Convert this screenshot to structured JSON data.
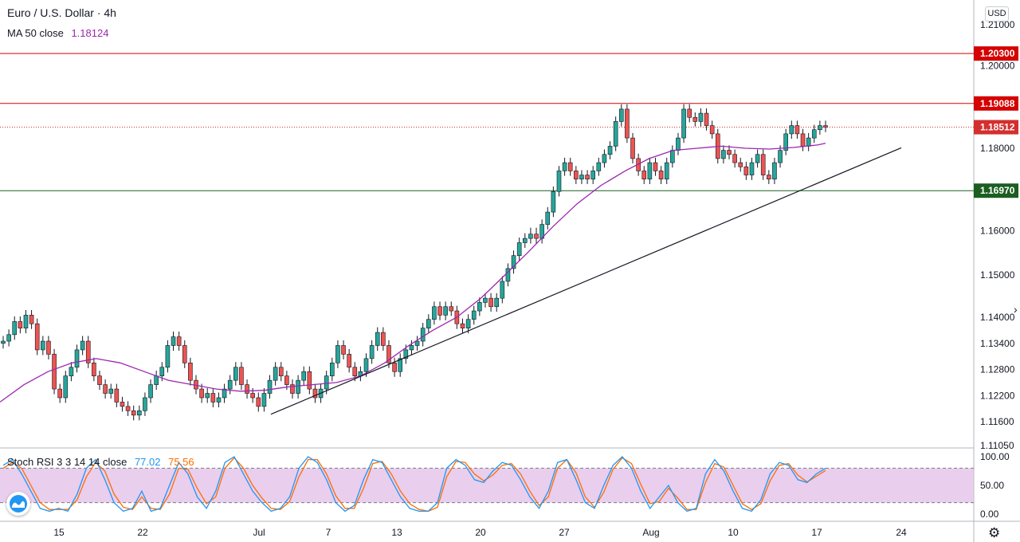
{
  "symbol_title": "Euro / U.S. Dollar · 4h",
  "ma_label": "MA 50 close",
  "ma_value": "1.18124",
  "stoch_label": "Stoch RSI 3 3 14 14 close",
  "stoch_k": "77.02",
  "stoch_d": "75.56",
  "currency": "USD",
  "icons": {
    "settings": "gear-icon",
    "logo": "tradingview-logo-icon",
    "scroll": "chevron-right-icon"
  },
  "colors": {
    "up": "#26a69a",
    "down": "#ef5350",
    "candle_outline": "#131722",
    "ma": "#9c27b0",
    "resistance": "#d50000",
    "support": "#1b5e20",
    "current_price": "#d32f2f",
    "stoch_k_color": "#2196f3",
    "stoch_d_color": "#ff6d00",
    "stoch_band": "#e1bee7"
  },
  "chart_data": {
    "type": "candlestick",
    "price_axis": {
      "ticks": [
        "1.21000",
        "1.20000",
        "1.18000",
        "1.16000",
        "1.15000",
        "1.14000",
        "1.13400",
        "1.12800",
        "1.12200",
        "1.11600",
        "1.11050"
      ],
      "range": [
        1.1105,
        1.212
      ]
    },
    "time_axis": {
      "ticks": [
        "15",
        "22",
        "Jul",
        "7",
        "13",
        "20",
        "27",
        "Aug",
        "10",
        "17",
        "24"
      ]
    },
    "horizontal_levels": [
      {
        "label": "1.20300",
        "price": 1.203,
        "kind": "resistance"
      },
      {
        "label": "1.19088",
        "price": 1.19088,
        "kind": "resistance"
      },
      {
        "label": "1.18512",
        "price": 1.18512,
        "kind": "current"
      },
      {
        "label": "1.16970",
        "price": 1.1697,
        "kind": "support"
      }
    ],
    "trendline": {
      "from": {
        "date": "Jul 1",
        "price": 1.1177
      },
      "to": {
        "date": "Aug 23",
        "price": 1.1801
      }
    },
    "candles_close_path": [
      [
        1.134,
        1.1345
      ],
      [
        1.1345,
        1.136
      ],
      [
        1.136,
        1.139
      ],
      [
        1.139,
        1.1375
      ],
      [
        1.1375,
        1.1405
      ],
      [
        1.1405,
        1.1385
      ],
      [
        1.1385,
        1.1325
      ],
      [
        1.1325,
        1.1345
      ],
      [
        1.1345,
        1.1315
      ],
      [
        1.1315,
        1.1235
      ],
      [
        1.1235,
        1.1215
      ],
      [
        1.1215,
        1.1265
      ],
      [
        1.1265,
        1.1285
      ],
      [
        1.1285,
        1.1325
      ],
      [
        1.1325,
        1.1345
      ],
      [
        1.1345,
        1.1295
      ],
      [
        1.1295,
        1.1265
      ],
      [
        1.1265,
        1.1245
      ],
      [
        1.1245,
        1.1225
      ],
      [
        1.1225,
        1.1235
      ],
      [
        1.1235,
        1.1205
      ],
      [
        1.1205,
        1.1195
      ],
      [
        1.1195,
        1.1185
      ],
      [
        1.1185,
        1.1175
      ],
      [
        1.1175,
        1.1185
      ],
      [
        1.1185,
        1.1215
      ],
      [
        1.1215,
        1.1245
      ],
      [
        1.1245,
        1.1265
      ],
      [
        1.1265,
        1.1285
      ],
      [
        1.1285,
        1.1335
      ],
      [
        1.1335,
        1.1355
      ],
      [
        1.1355,
        1.1335
      ],
      [
        1.1335,
        1.1295
      ],
      [
        1.1295,
        1.1255
      ],
      [
        1.1255,
        1.1235
      ],
      [
        1.1235,
        1.1215
      ],
      [
        1.1215,
        1.1225
      ],
      [
        1.1225,
        1.1205
      ],
      [
        1.1205,
        1.1215
      ],
      [
        1.1215,
        1.1235
      ],
      [
        1.1235,
        1.1255
      ],
      [
        1.1255,
        1.1285
      ],
      [
        1.1285,
        1.1245
      ],
      [
        1.1245,
        1.1225
      ],
      [
        1.1225,
        1.1215
      ],
      [
        1.1215,
        1.1195
      ],
      [
        1.1195,
        1.1225
      ],
      [
        1.1225,
        1.1255
      ],
      [
        1.1255,
        1.1285
      ],
      [
        1.1285,
        1.1265
      ],
      [
        1.1265,
        1.1245
      ],
      [
        1.1245,
        1.1225
      ],
      [
        1.1225,
        1.1255
      ],
      [
        1.1255,
        1.1275
      ],
      [
        1.1275,
        1.1235
      ],
      [
        1.1235,
        1.1215
      ],
      [
        1.1215,
        1.1235
      ],
      [
        1.1235,
        1.1265
      ],
      [
        1.1265,
        1.1295
      ],
      [
        1.1295,
        1.1335
      ],
      [
        1.1335,
        1.1315
      ],
      [
        1.1315,
        1.1285
      ],
      [
        1.1285,
        1.1265
      ],
      [
        1.1265,
        1.1275
      ],
      [
        1.1275,
        1.1305
      ],
      [
        1.1305,
        1.1335
      ],
      [
        1.1335,
        1.1365
      ],
      [
        1.1365,
        1.1335
      ],
      [
        1.1335,
        1.1295
      ],
      [
        1.1295,
        1.1275
      ],
      [
        1.1275,
        1.1305
      ],
      [
        1.1305,
        1.1325
      ],
      [
        1.1325,
        1.1335
      ],
      [
        1.1335,
        1.1345
      ],
      [
        1.1345,
        1.1375
      ],
      [
        1.1375,
        1.1395
      ],
      [
        1.1395,
        1.1425
      ],
      [
        1.1425,
        1.1405
      ],
      [
        1.1405,
        1.1425
      ],
      [
        1.1425,
        1.1415
      ],
      [
        1.1415,
        1.1385
      ],
      [
        1.1385,
        1.1375
      ],
      [
        1.1375,
        1.1395
      ],
      [
        1.1395,
        1.1415
      ],
      [
        1.1415,
        1.1435
      ],
      [
        1.1435,
        1.1445
      ],
      [
        1.1445,
        1.1425
      ],
      [
        1.1425,
        1.1445
      ],
      [
        1.1445,
        1.1485
      ],
      [
        1.1485,
        1.1515
      ],
      [
        1.1515,
        1.1545
      ],
      [
        1.1545,
        1.1575
      ],
      [
        1.1575,
        1.1585
      ],
      [
        1.1585,
        1.1595
      ],
      [
        1.1595,
        1.1585
      ],
      [
        1.1585,
        1.1615
      ],
      [
        1.1615,
        1.1645
      ],
      [
        1.1645,
        1.1695
      ],
      [
        1.1695,
        1.1745
      ],
      [
        1.1745,
        1.1765
      ],
      [
        1.1765,
        1.1745
      ],
      [
        1.1745,
        1.1725
      ],
      [
        1.1725,
        1.1735
      ],
      [
        1.1735,
        1.1725
      ],
      [
        1.1725,
        1.1745
      ],
      [
        1.1745,
        1.1765
      ],
      [
        1.1765,
        1.1785
      ],
      [
        1.1785,
        1.1805
      ],
      [
        1.1805,
        1.1865
      ],
      [
        1.1865,
        1.1895
      ],
      [
        1.1895,
        1.1825
      ],
      [
        1.1825,
        1.1775
      ],
      [
        1.1775,
        1.1745
      ],
      [
        1.1745,
        1.1725
      ],
      [
        1.1725,
        1.1765
      ],
      [
        1.1765,
        1.1745
      ],
      [
        1.1745,
        1.1725
      ],
      [
        1.1725,
        1.1765
      ],
      [
        1.1765,
        1.1795
      ],
      [
        1.1795,
        1.1825
      ],
      [
        1.1825,
        1.1895
      ],
      [
        1.1895,
        1.1875
      ],
      [
        1.1875,
        1.1865
      ],
      [
        1.1865,
        1.1885
      ],
      [
        1.1885,
        1.1855
      ],
      [
        1.1855,
        1.1835
      ],
      [
        1.1835,
        1.1775
      ],
      [
        1.1775,
        1.1795
      ],
      [
        1.1795,
        1.1785
      ],
      [
        1.1785,
        1.1765
      ],
      [
        1.1765,
        1.1755
      ],
      [
        1.1755,
        1.1735
      ],
      [
        1.1735,
        1.1765
      ],
      [
        1.1765,
        1.1785
      ],
      [
        1.1785,
        1.1735
      ],
      [
        1.1735,
        1.1725
      ],
      [
        1.1725,
        1.1765
      ],
      [
        1.1765,
        1.1795
      ],
      [
        1.1795,
        1.1835
      ],
      [
        1.1835,
        1.1855
      ],
      [
        1.1855,
        1.1835
      ],
      [
        1.1835,
        1.1805
      ],
      [
        1.1805,
        1.1825
      ],
      [
        1.1825,
        1.1845
      ],
      [
        1.1845,
        1.1855
      ],
      [
        1.1855,
        1.1851
      ]
    ],
    "ma50_path": [
      [
        1.1205,
        0
      ],
      [
        1.1245,
        6
      ],
      [
        1.1275,
        12
      ],
      [
        1.1295,
        18
      ],
      [
        1.1305,
        24
      ],
      [
        1.1295,
        30
      ],
      [
        1.1275,
        36
      ],
      [
        1.1255,
        42
      ],
      [
        1.1245,
        48
      ],
      [
        1.1235,
        54
      ],
      [
        1.123,
        60
      ],
      [
        1.1232,
        66
      ],
      [
        1.124,
        72
      ],
      [
        1.1245,
        78
      ],
      [
        1.125,
        84
      ],
      [
        1.1265,
        90
      ],
      [
        1.1295,
        96
      ],
      [
        1.1335,
        102
      ],
      [
        1.137,
        108
      ],
      [
        1.14,
        114
      ],
      [
        1.1445,
        120
      ],
      [
        1.15,
        126
      ],
      [
        1.1555,
        132
      ],
      [
        1.161,
        138
      ],
      [
        1.1665,
        144
      ],
      [
        1.171,
        150
      ],
      [
        1.1745,
        156
      ],
      [
        1.1775,
        162
      ],
      [
        1.1795,
        168
      ],
      [
        1.18,
        174
      ],
      [
        1.1805,
        180
      ],
      [
        1.18,
        186
      ],
      [
        1.1798,
        192
      ],
      [
        1.1802,
        198
      ],
      [
        1.1808,
        204
      ],
      [
        1.1812,
        206
      ]
    ],
    "stoch_rsi": {
      "axis_ticks": [
        "100.00",
        "50.00",
        "0.00"
      ],
      "band": [
        20,
        80
      ],
      "k_series": [
        85,
        95,
        70,
        40,
        10,
        5,
        10,
        5,
        35,
        80,
        95,
        60,
        20,
        5,
        10,
        40,
        5,
        10,
        50,
        90,
        70,
        30,
        10,
        40,
        90,
        100,
        70,
        40,
        20,
        5,
        10,
        30,
        80,
        100,
        90,
        60,
        20,
        5,
        15,
        60,
        95,
        90,
        60,
        30,
        10,
        5,
        5,
        20,
        80,
        95,
        85,
        60,
        55,
        75,
        90,
        85,
        60,
        30,
        10,
        40,
        90,
        95,
        60,
        20,
        10,
        50,
        85,
        100,
        80,
        40,
        10,
        30,
        50,
        20,
        5,
        10,
        70,
        95,
        75,
        40,
        10,
        5,
        25,
        70,
        90,
        85,
        60,
        55,
        70,
        80
      ],
      "d_series": [
        80,
        90,
        80,
        50,
        20,
        8,
        8,
        8,
        25,
        65,
        90,
        75,
        35,
        12,
        8,
        30,
        10,
        8,
        35,
        80,
        78,
        45,
        18,
        30,
        80,
        98,
        80,
        50,
        28,
        10,
        8,
        22,
        65,
        95,
        95,
        70,
        32,
        10,
        10,
        45,
        88,
        92,
        70,
        40,
        18,
        8,
        5,
        12,
        65,
        92,
        90,
        70,
        58,
        68,
        85,
        88,
        70,
        40,
        15,
        30,
        80,
        95,
        72,
        30,
        12,
        38,
        78,
        98,
        88,
        52,
        18,
        22,
        45,
        28,
        8,
        8,
        55,
        88,
        82,
        50,
        18,
        8,
        18,
        58,
        85,
        88,
        68,
        56,
        66,
        76
      ]
    }
  }
}
